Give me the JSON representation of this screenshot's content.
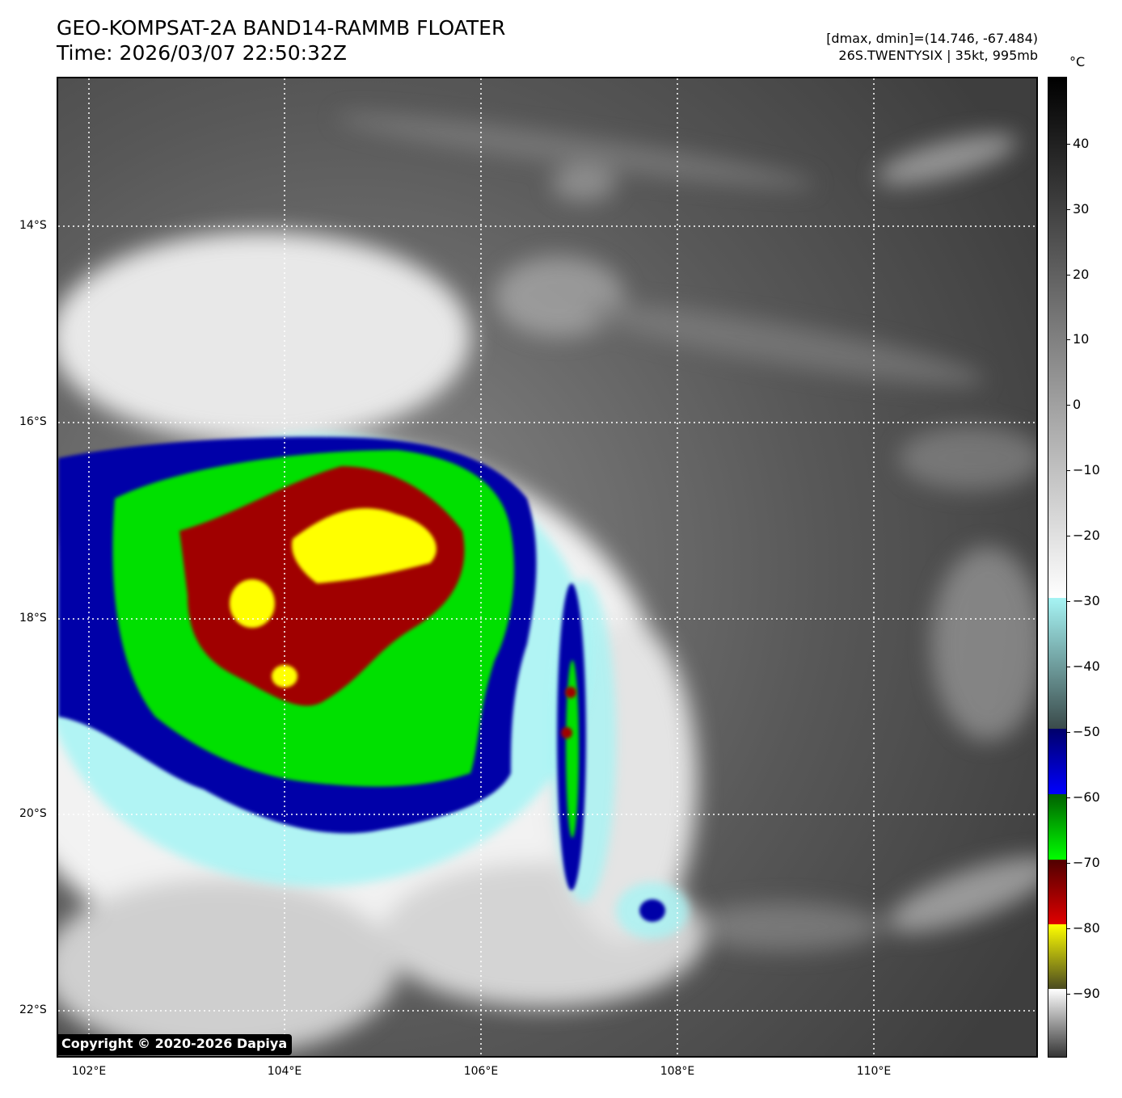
{
  "header": {
    "title_line1": "GEO-KOMPSAT-2A BAND14-RAMMB FLOATER",
    "title_line2": "Time: 2026/03/07 22:50:32Z",
    "info_line1": "[dmax, dmin]=(14.746, -67.484)",
    "info_line2": "26S.TWENTYSIX | 35kt, 995mb"
  },
  "map": {
    "lat_labels": [
      "14°S",
      "16°S",
      "18°S",
      "20°S",
      "22°S"
    ],
    "lon_labels": [
      "102°E",
      "104°E",
      "106°E",
      "108°E",
      "110°E"
    ],
    "copyright": "Copyright © 2020-2026 Dapiya"
  },
  "colorbar": {
    "unit": "°C",
    "ticks": [
      "40",
      "30",
      "20",
      "10",
      "0",
      "−10",
      "−20",
      "−30",
      "−40",
      "−50",
      "−60",
      "−70",
      "−80",
      "−90"
    ],
    "colors": {
      "warm_top": "#000000",
      "gray_mid": "#9a9a9a",
      "white": "#ffffff",
      "cyan": "#a6f4f4",
      "blue": "#0000a8",
      "green": "#00e000",
      "red": "#a00000",
      "yellow": "#ffff00"
    }
  }
}
